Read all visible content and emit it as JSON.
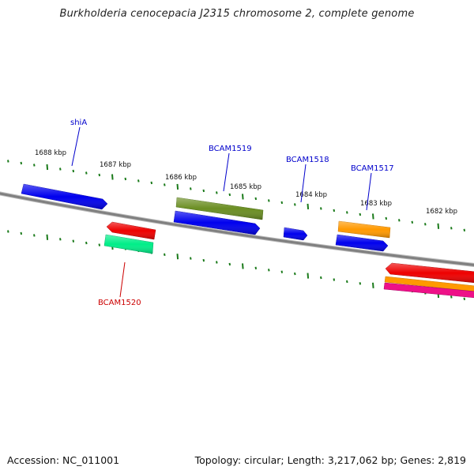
{
  "title": "Burkholderia cenocepacia J2315 chromosome 2, complete genome",
  "footer": {
    "accession": "Accession: NC_011001",
    "stats": "Topology: circular; Length: 3,217,062 bp; Genes: 2,819"
  },
  "scale_labels": [
    "1688 kbp",
    "1687 kbp",
    "1686 kbp",
    "1685 kbp",
    "1684 kbp",
    "1683 kbp",
    "1682 kbp"
  ],
  "gene_labels": [
    {
      "text": "shiA",
      "color": "#0000cc"
    },
    {
      "text": "BCAM1519",
      "color": "#0000cc"
    },
    {
      "text": "BCAM1518",
      "color": "#0000cc"
    },
    {
      "text": "BCAM1517",
      "color": "#0000cc"
    },
    {
      "text": "BCAM1520",
      "color": "#cc0000"
    }
  ],
  "colors": {
    "backbone": "#808080",
    "tick": "#1a7a1a",
    "blue": "#0000ee",
    "olive": "#6b8e23",
    "red": "#ee0000",
    "green": "#00ee88",
    "orange": "#ff9900",
    "magenta": "#ee1188"
  }
}
